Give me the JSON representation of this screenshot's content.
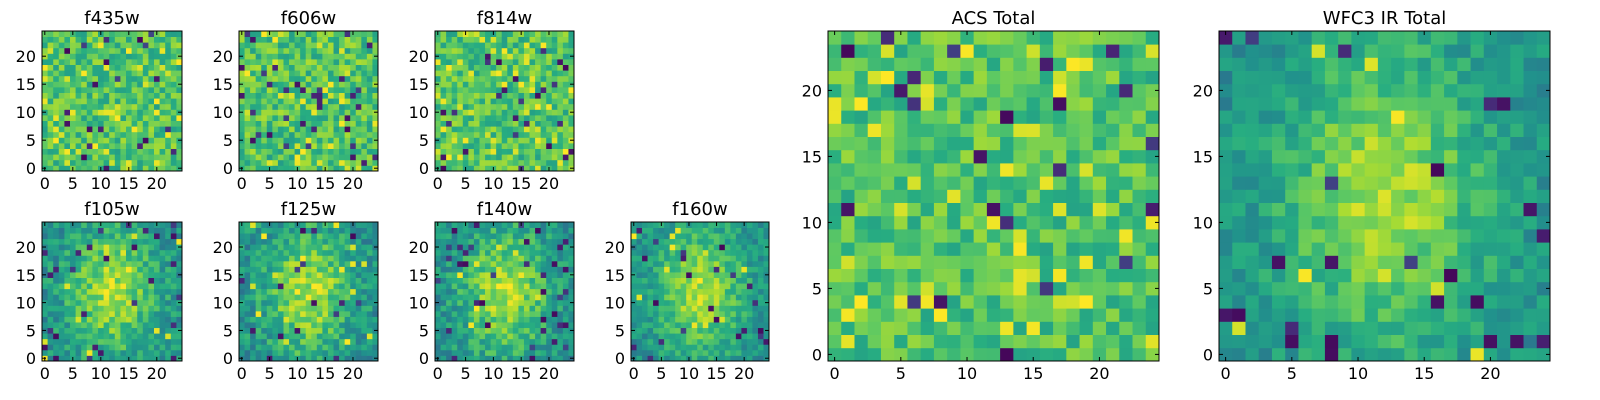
{
  "colormap": "viridis",
  "colors": {
    "low": "#440154",
    "mid": "#21918c",
    "high": "#fde725",
    "axis": "#000000"
  },
  "chart_data": [
    {
      "type": "heatmap",
      "title": "f435w",
      "grid_size": 25,
      "xlim": [
        -0.5,
        24.5
      ],
      "ylim": [
        -0.5,
        24.5
      ],
      "x_ticks": [
        0,
        5,
        10,
        15,
        20
      ],
      "y_ticks": [
        0,
        5,
        10,
        15,
        20
      ],
      "pattern": "noise",
      "seed": 11,
      "spread": 0.16,
      "dark_fraction": 0.04,
      "bright_fraction": 0.06
    },
    {
      "type": "heatmap",
      "title": "f606w",
      "grid_size": 25,
      "xlim": [
        -0.5,
        24.5
      ],
      "ylim": [
        -0.5,
        24.5
      ],
      "x_ticks": [
        0,
        5,
        10,
        15,
        20
      ],
      "y_ticks": [
        0,
        5,
        10,
        15,
        20
      ],
      "pattern": "noise",
      "seed": 23,
      "spread": 0.17,
      "dark_fraction": 0.04,
      "bright_fraction": 0.07
    },
    {
      "type": "heatmap",
      "title": "f814w",
      "grid_size": 25,
      "xlim": [
        -0.5,
        24.5
      ],
      "ylim": [
        -0.5,
        24.5
      ],
      "x_ticks": [
        0,
        5,
        10,
        15,
        20
      ],
      "y_ticks": [
        0,
        5,
        10,
        15,
        20
      ],
      "pattern": "noise",
      "seed": 37,
      "spread": 0.16,
      "dark_fraction": 0.04,
      "bright_fraction": 0.07
    },
    {
      "type": "heatmap",
      "title": "f105w",
      "grid_size": 25,
      "xlim": [
        -0.5,
        24.5
      ],
      "ylim": [
        -0.5,
        24.5
      ],
      "x_ticks": [
        0,
        5,
        10,
        15,
        20
      ],
      "y_ticks": [
        0,
        5,
        10,
        15,
        20
      ],
      "pattern": "source",
      "seed": 41,
      "spread": 0.14,
      "dark_fraction": 0.05,
      "bright_fraction": 0.02
    },
    {
      "type": "heatmap",
      "title": "f125w",
      "grid_size": 25,
      "xlim": [
        -0.5,
        24.5
      ],
      "ylim": [
        -0.5,
        24.5
      ],
      "x_ticks": [
        0,
        5,
        10,
        15,
        20
      ],
      "y_ticks": [
        0,
        5,
        10,
        15,
        20
      ],
      "pattern": "source",
      "seed": 53,
      "spread": 0.15,
      "dark_fraction": 0.04,
      "bright_fraction": 0.03
    },
    {
      "type": "heatmap",
      "title": "f140w",
      "grid_size": 25,
      "xlim": [
        -0.5,
        24.5
      ],
      "ylim": [
        -0.5,
        24.5
      ],
      "x_ticks": [
        0,
        5,
        10,
        15,
        20
      ],
      "y_ticks": [
        0,
        5,
        10,
        15,
        20
      ],
      "pattern": "source",
      "seed": 67,
      "spread": 0.14,
      "dark_fraction": 0.05,
      "bright_fraction": 0.02
    },
    {
      "type": "heatmap",
      "title": "f160w",
      "grid_size": 25,
      "xlim": [
        -0.5,
        24.5
      ],
      "ylim": [
        -0.5,
        24.5
      ],
      "x_ticks": [
        0,
        5,
        10,
        15,
        20
      ],
      "y_ticks": [
        0,
        5,
        10,
        15,
        20
      ],
      "pattern": "source",
      "seed": 79,
      "spread": 0.12,
      "dark_fraction": 0.04,
      "bright_fraction": 0.02
    },
    {
      "type": "heatmap",
      "title": "ACS Total",
      "grid_size": 25,
      "xlim": [
        -0.5,
        24.5
      ],
      "ylim": [
        -0.5,
        24.5
      ],
      "x_ticks": [
        0,
        5,
        10,
        15,
        20
      ],
      "y_ticks": [
        0,
        5,
        10,
        15,
        20
      ],
      "pattern": "noise",
      "seed": 97,
      "spread": 0.14,
      "dark_fraction": 0.04,
      "bright_fraction": 0.07
    },
    {
      "type": "heatmap",
      "title": "WFC3 IR Total",
      "grid_size": 25,
      "xlim": [
        -0.5,
        24.5
      ],
      "ylim": [
        -0.5,
        24.5
      ],
      "x_ticks": [
        0,
        5,
        10,
        15,
        20
      ],
      "y_ticks": [
        0,
        5,
        10,
        15,
        20
      ],
      "pattern": "source",
      "seed": 113,
      "spread": 0.11,
      "dark_fraction": 0.04,
      "bright_fraction": 0.01
    }
  ]
}
